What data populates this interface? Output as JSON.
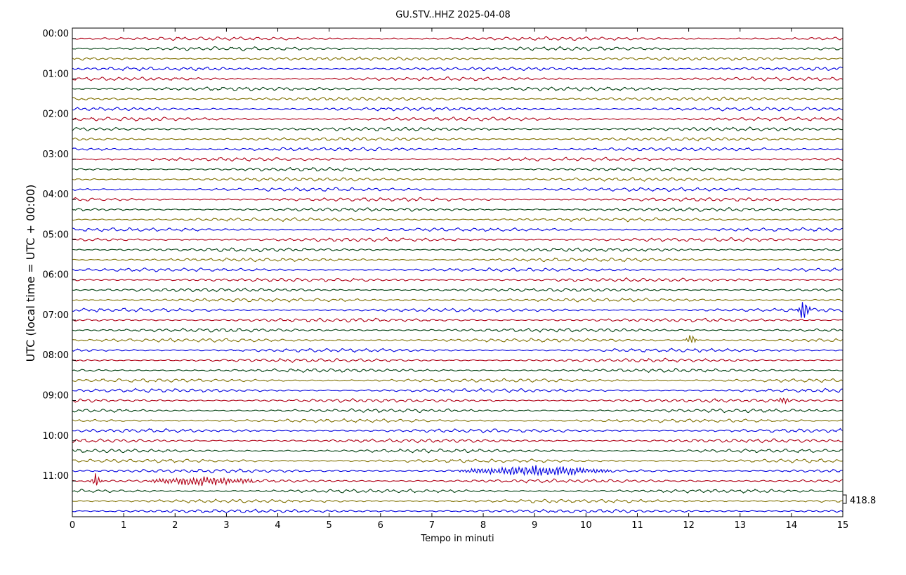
{
  "chart_data": {
    "type": "line",
    "title": "GU.STV..HHZ 2025-04-08",
    "xlabel": "Tempo in minuti",
    "ylabel": "UTC (local time = UTC + 00:00)",
    "xlim": [
      0,
      15
    ],
    "x_ticks": [
      "0",
      "1",
      "2",
      "3",
      "4",
      "5",
      "6",
      "7",
      "8",
      "9",
      "10",
      "11",
      "12",
      "13",
      "14",
      "15"
    ],
    "hour_labels": [
      "00:00",
      "01:00",
      "02:00",
      "03:00",
      "04:00",
      "05:00",
      "06:00",
      "07:00",
      "08:00",
      "09:00",
      "10:00",
      "11:00"
    ],
    "traces_per_hour": 4,
    "trace_count": 48,
    "trace_colors": [
      "#b00016",
      "#004010",
      "#807000",
      "#0000e0"
    ],
    "scale_label": "418.8",
    "events": [
      {
        "trace": 27,
        "minute": 14.25,
        "amplitude": 3.0
      },
      {
        "trace": 30,
        "minute": 12.05,
        "amplitude": 1.2
      },
      {
        "trace": 36,
        "minute": 13.85,
        "amplitude": 0.6
      },
      {
        "trace": 43,
        "minute": 9.0,
        "amplitude": 0.9,
        "duration": 3.0
      },
      {
        "trace": 44,
        "minute": 0.45,
        "amplitude": 1.6
      },
      {
        "trace": 44,
        "minute": 2.5,
        "amplitude": 0.7,
        "duration": 2.0
      }
    ],
    "grid": false,
    "legend": "none"
  }
}
